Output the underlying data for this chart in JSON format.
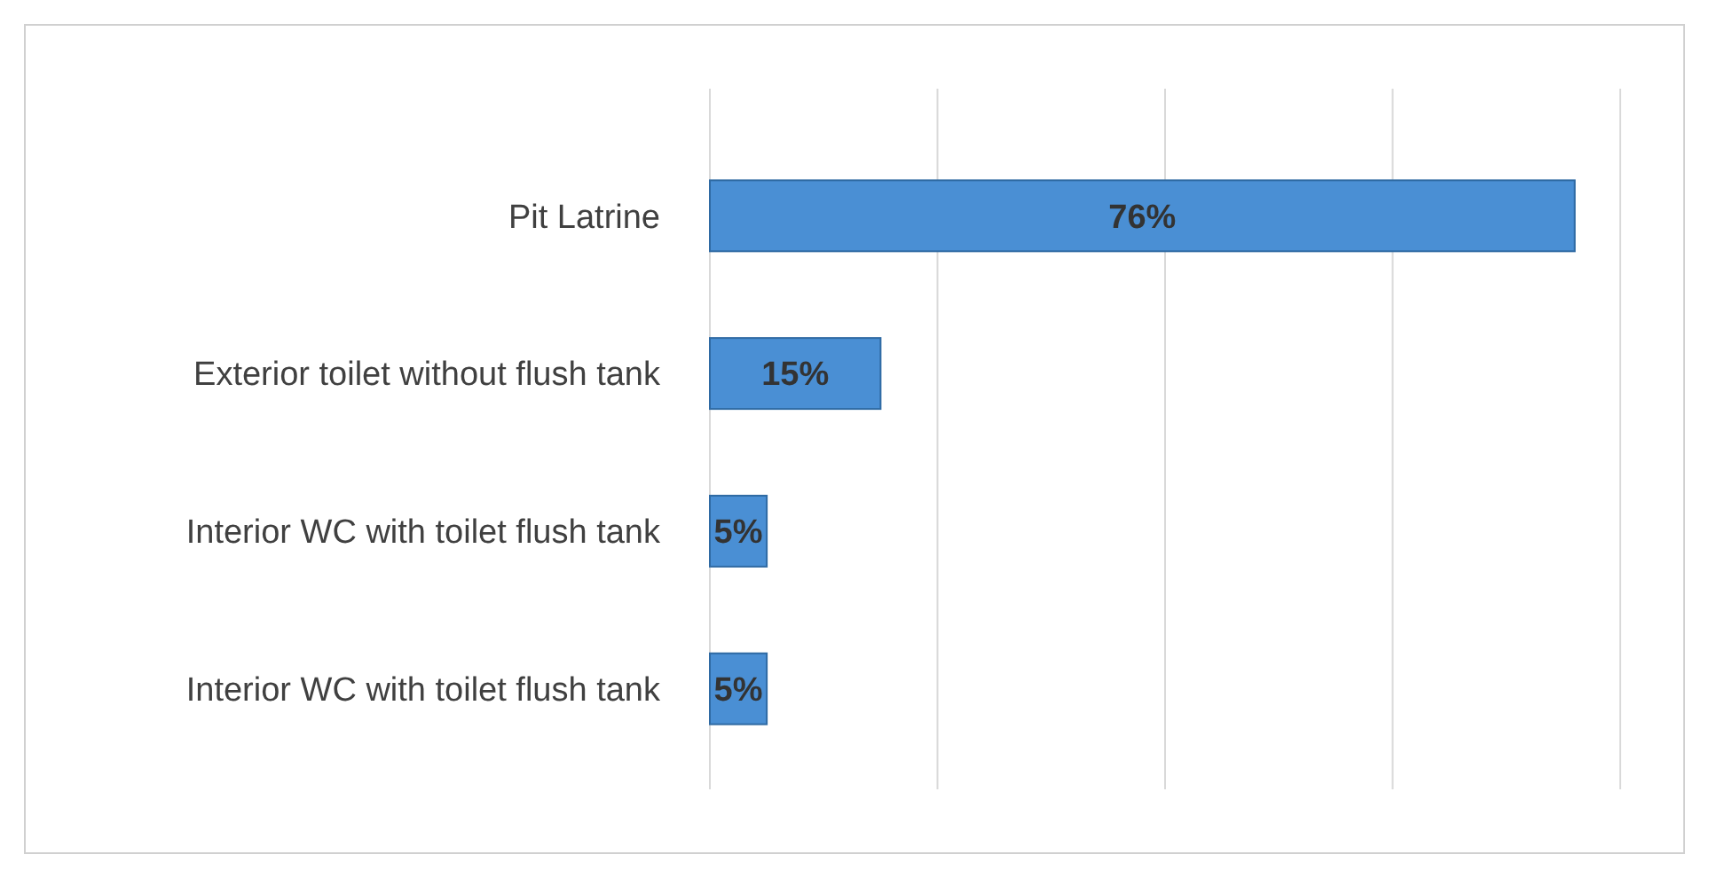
{
  "chart_data": {
    "type": "bar",
    "orientation": "horizontal",
    "categories": [
      "Pit Latrine",
      "Exterior toilet without flush tank",
      "Interior WC with toilet flush tank",
      "Interior WC with toilet flush tank"
    ],
    "values": [
      76,
      15,
      5,
      5
    ],
    "value_labels": [
      "76%",
      "15%",
      "5%",
      "5%"
    ],
    "color": "#4a8fd4",
    "xlim": [
      0,
      80
    ],
    "xticks": [
      {
        "value": 0,
        "label": null
      },
      {
        "value": 20,
        "label": null
      },
      {
        "value": 40,
        "label": null
      },
      {
        "value": 60,
        "label": null
      },
      {
        "value": 80,
        "label": null
      }
    ],
    "tick_labels": "y",
    "grid": "x"
  }
}
